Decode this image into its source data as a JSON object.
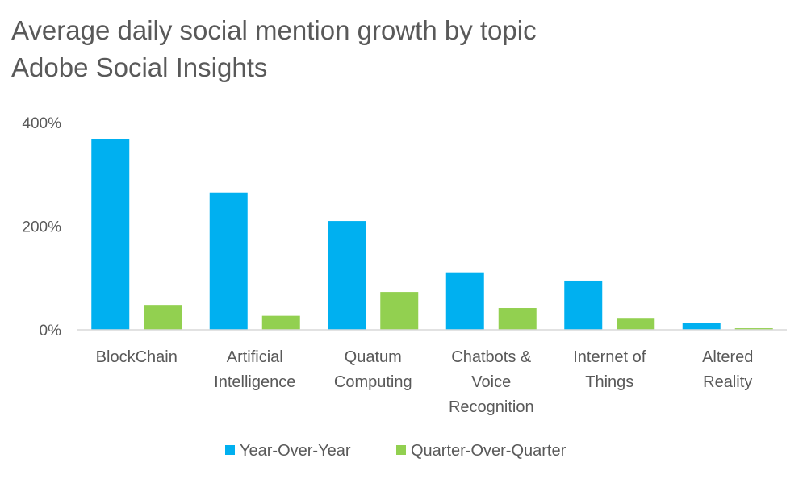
{
  "chart_data": {
    "type": "bar",
    "title": "Average daily social mention growth by topic",
    "subtitle": "Adobe Social Insights",
    "categories": [
      [
        "BlockChain"
      ],
      [
        "Artificial",
        "Intelligence"
      ],
      [
        "Quatum",
        "Computing"
      ],
      [
        "Chatbots &",
        "Voice",
        "Recognition"
      ],
      [
        "Internet of",
        "Things"
      ],
      [
        "Altered",
        "Reality"
      ]
    ],
    "series": [
      {
        "name": "Year-Over-Year",
        "color": "#00B0F0",
        "values": [
          368,
          265,
          210,
          111,
          95,
          13
        ]
      },
      {
        "name": "Quarter-Over-Quarter",
        "color": "#92D050",
        "values": [
          48,
          27,
          73,
          42,
          23,
          3
        ]
      }
    ],
    "y_ticks": [
      {
        "value": 0,
        "label": "0%"
      },
      {
        "value": 200,
        "label": "200%"
      },
      {
        "value": 400,
        "label": "400%"
      }
    ],
    "ylim": [
      0,
      400
    ],
    "grid": false,
    "legend_position": "bottom",
    "axis_color": "#D9D9D9",
    "text_color": "#595959"
  }
}
